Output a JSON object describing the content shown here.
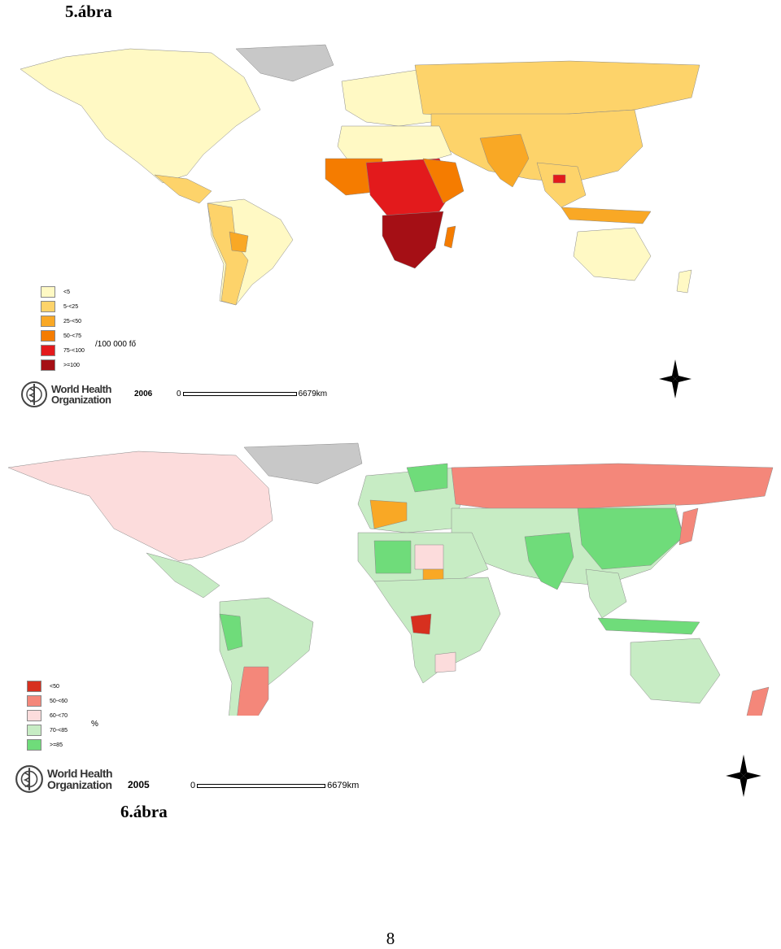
{
  "figures": [
    {
      "caption": "5.ábra",
      "year": "2006",
      "unit": "/100 000 fő",
      "scale": {
        "start": "0",
        "end": "6679km"
      },
      "who": {
        "line1": "World Health",
        "line2": "Organization"
      },
      "legend": [
        {
          "label": "<5",
          "color": "#fff9c4"
        },
        {
          "label": "5-<25",
          "color": "#fdd36a"
        },
        {
          "label": "25-<50",
          "color": "#f9a825"
        },
        {
          "label": "50-<75",
          "color": "#f57c00"
        },
        {
          "label": "75-<100",
          "color": "#e31a1c"
        },
        {
          "label": ">=100",
          "color": "#a50f15"
        }
      ]
    },
    {
      "caption": "6.ábra",
      "year": "2005",
      "unit": "%",
      "scale": {
        "start": "0",
        "end": "6679km"
      },
      "who": {
        "line1": "World Health",
        "line2": "Organization"
      },
      "legend": [
        {
          "label": "<50",
          "color": "#d7301f"
        },
        {
          "label": "50-<60",
          "color": "#f4877a"
        },
        {
          "label": "60-<70",
          "color": "#fcdcdc"
        },
        {
          "label": "70-<85",
          "color": "#c7ecc4"
        },
        {
          "label": ">=85",
          "color": "#6fdc7a"
        }
      ]
    }
  ],
  "page_number": "8"
}
